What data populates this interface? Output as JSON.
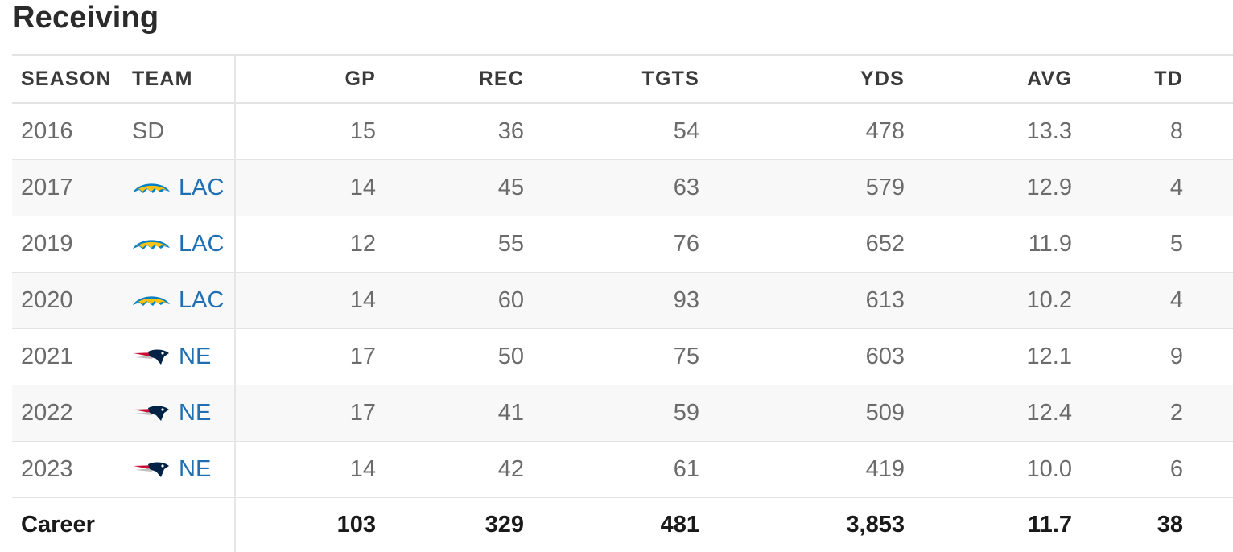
{
  "title": "Receiving",
  "columns": {
    "season": "SEASON",
    "team": "TEAM",
    "gp": "GP",
    "rec": "REC",
    "tgts": "TGTS",
    "yds": "YDS",
    "avg": "AVG",
    "td": "TD"
  },
  "rows": [
    {
      "season": "2016",
      "team": "SD",
      "team_logo": "",
      "gp": "15",
      "rec": "36",
      "tgts": "54",
      "yds": "478",
      "avg": "13.3",
      "td": "8"
    },
    {
      "season": "2017",
      "team": "LAC",
      "team_logo": "chargers-bolt-icon",
      "gp": "14",
      "rec": "45",
      "tgts": "63",
      "yds": "579",
      "avg": "12.9",
      "td": "4"
    },
    {
      "season": "2019",
      "team": "LAC",
      "team_logo": "chargers-bolt-icon",
      "gp": "12",
      "rec": "55",
      "tgts": "76",
      "yds": "652",
      "avg": "11.9",
      "td": "5"
    },
    {
      "season": "2020",
      "team": "LAC",
      "team_logo": "chargers-bolt-icon",
      "gp": "14",
      "rec": "60",
      "tgts": "93",
      "yds": "613",
      "avg": "10.2",
      "td": "4"
    },
    {
      "season": "2021",
      "team": "NE",
      "team_logo": "patriots-logo-icon",
      "gp": "17",
      "rec": "50",
      "tgts": "75",
      "yds": "603",
      "avg": "12.1",
      "td": "9"
    },
    {
      "season": "2022",
      "team": "NE",
      "team_logo": "patriots-logo-icon",
      "gp": "17",
      "rec": "41",
      "tgts": "59",
      "yds": "509",
      "avg": "12.4",
      "td": "2"
    },
    {
      "season": "2023",
      "team": "NE",
      "team_logo": "patriots-logo-icon",
      "gp": "14",
      "rec": "42",
      "tgts": "61",
      "yds": "419",
      "avg": "10.0",
      "td": "6"
    }
  ],
  "career": {
    "label": "Career",
    "gp": "103",
    "rec": "329",
    "tgts": "481",
    "yds": "3,853",
    "avg": "11.7",
    "td": "38"
  },
  "colors": {
    "link": "#1f6fb2",
    "chargers_blue": "#0080c6",
    "chargers_gold": "#ffc20e",
    "patriots_navy": "#002244",
    "patriots_red": "#c60c30"
  }
}
